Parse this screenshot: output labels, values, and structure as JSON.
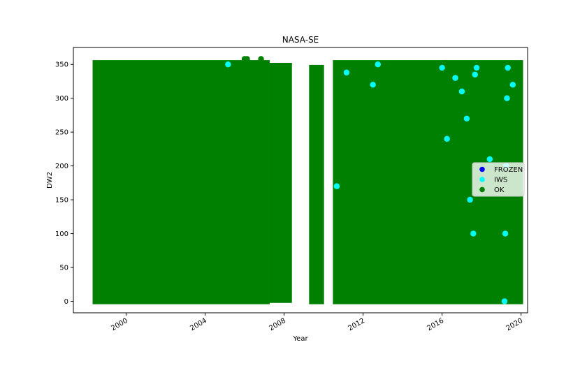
{
  "chart_data": {
    "type": "scatter",
    "title": "NASA-SE",
    "xlabel": "Year",
    "ylabel": "DW2",
    "x_axis_type": "date",
    "xlim": [
      "1997-05-01",
      "2020-05-01"
    ],
    "ylim": [
      -17,
      375
    ],
    "x_ticks": [
      "2000",
      "2004",
      "2008",
      "2012",
      "2016",
      "2020"
    ],
    "y_ticks": [
      "0",
      "50",
      "100",
      "150",
      "200",
      "250",
      "300",
      "350"
    ],
    "grid": false,
    "legend_placement": "center-right",
    "legend": [
      {
        "name": "FROZEN",
        "color": "#0000ff"
      },
      {
        "name": "IWS",
        "color": "#00ffff"
      },
      {
        "name": "OK",
        "color": "#008000"
      }
    ],
    "series": [
      {
        "name": "OK",
        "color": "#008000",
        "bands": [
          {
            "start": "1998-06-15",
            "end": "2007-02-15",
            "y_min": 0,
            "y_max": 352
          },
          {
            "start": "2007-06-01",
            "end": "2008-04-01",
            "y_min": 2,
            "y_max": 348
          },
          {
            "start": "2009-06-01",
            "end": "2009-11-15",
            "y_min": 0,
            "y_max": 345
          },
          {
            "start": "2010-08-15",
            "end": "2019-12-15",
            "y_min": 0,
            "y_max": 352
          }
        ],
        "points": [
          {
            "x": "2006-01-01",
            "y": 358
          },
          {
            "x": "2006-02-15",
            "y": 358
          },
          {
            "x": "2006-11-01",
            "y": 358
          },
          {
            "x": "2013-06-01",
            "y": 345
          },
          {
            "x": "2016-03-01",
            "y": 352
          },
          {
            "x": "2018-04-01",
            "y": 351
          },
          {
            "x": "2019-05-01",
            "y": 349
          }
        ]
      },
      {
        "name": "IWS",
        "color": "#00ffff",
        "points": [
          {
            "x": "2005-03-01",
            "y": 350
          },
          {
            "x": "2010-09-01",
            "y": 170
          },
          {
            "x": "2011-03-01",
            "y": 338
          },
          {
            "x": "2012-07-01",
            "y": 320
          },
          {
            "x": "2012-10-01",
            "y": 350
          },
          {
            "x": "2016-01-01",
            "y": 345
          },
          {
            "x": "2016-04-01",
            "y": 240
          },
          {
            "x": "2016-09-01",
            "y": 330
          },
          {
            "x": "2017-01-01",
            "y": 310
          },
          {
            "x": "2017-04-01",
            "y": 270
          },
          {
            "x": "2017-06-01",
            "y": 150
          },
          {
            "x": "2017-08-01",
            "y": 100
          },
          {
            "x": "2017-09-01",
            "y": 335
          },
          {
            "x": "2017-10-01",
            "y": 345
          },
          {
            "x": "2018-06-01",
            "y": 210
          },
          {
            "x": "2019-03-01",
            "y": 0
          },
          {
            "x": "2019-03-15",
            "y": 100
          },
          {
            "x": "2019-04-01",
            "y": 200
          },
          {
            "x": "2019-04-15",
            "y": 300
          },
          {
            "x": "2019-05-01",
            "y": 345
          },
          {
            "x": "2019-08-01",
            "y": 320
          }
        ]
      },
      {
        "name": "FROZEN",
        "color": "#0000ff",
        "points": []
      }
    ]
  }
}
